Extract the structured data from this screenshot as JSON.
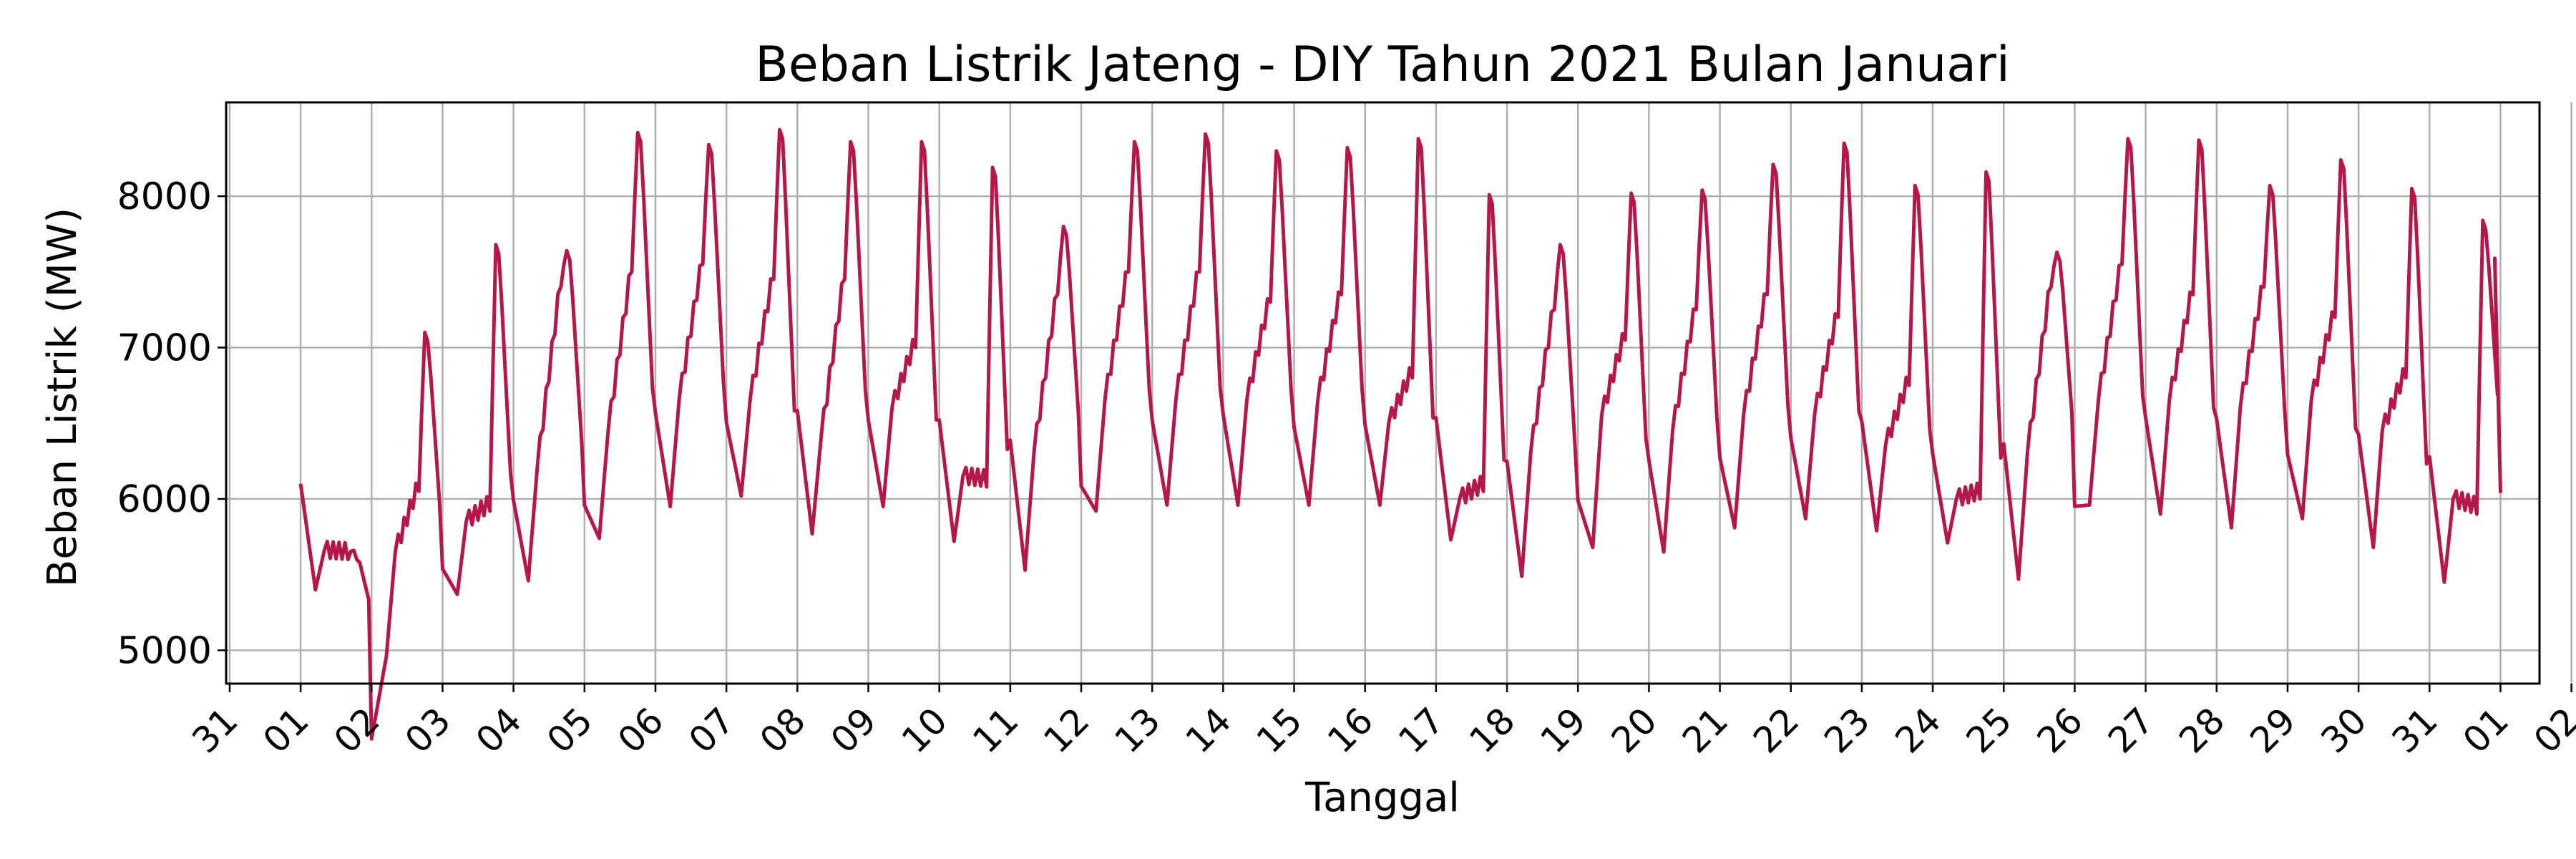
{
  "chart_data": {
    "type": "line",
    "title": "Beban Listrik Jateng - DIY Tahun 2021 Bulan Januari",
    "xlabel": "Tanggal",
    "ylabel": "Beban Listrik (MW)",
    "x_tick_labels": [
      "31",
      "01",
      "02",
      "03",
      "04",
      "05",
      "06",
      "07",
      "08",
      "09",
      "10",
      "11",
      "12",
      "13",
      "14",
      "15",
      "16",
      "17",
      "18",
      "19",
      "20",
      "21",
      "22",
      "23",
      "24",
      "25",
      "26",
      "27",
      "28",
      "29",
      "30",
      "31",
      "01",
      "02"
    ],
    "y_ticks": [
      5000,
      6000,
      7000,
      8000
    ],
    "xlim_days": [
      -1.05,
      31.55
    ],
    "ylim": [
      4780,
      8620
    ],
    "grid": true,
    "line_color": "#b5174a",
    "daily_profile": [
      {
        "day": "2021-01-01",
        "min": 5400,
        "morning": 5660,
        "day_level": 5650,
        "peak": 5660
      },
      {
        "day": "2021-01-02",
        "min": 4960,
        "morning": 5650,
        "day_level": 6100,
        "peak": 7100
      },
      {
        "day": "2021-01-03",
        "min": 5370,
        "morning": 5850,
        "day_level": 5970,
        "peak": 7680
      },
      {
        "day": "2021-01-04",
        "min": 5460,
        "morning": 6200,
        "day_level": 7450,
        "peak": 7640
      },
      {
        "day": "2021-01-05",
        "min": 5740,
        "morning": 6450,
        "day_level": 7550,
        "peak": 8420
      },
      {
        "day": "2021-01-06",
        "min": 5950,
        "morning": 6650,
        "day_level": 7600,
        "peak": 8340
      },
      {
        "day": "2021-01-07",
        "min": 6020,
        "morning": 6650,
        "day_level": 7500,
        "peak": 8440
      },
      {
        "day": "2021-01-08",
        "min": 5770,
        "morning": 6400,
        "day_level": 7500,
        "peak": 8360
      },
      {
        "day": "2021-01-09",
        "min": 5950,
        "morning": 6600,
        "day_level": 7050,
        "peak": 8360
      },
      {
        "day": "2021-01-10",
        "min": 5720,
        "morning": 6150,
        "day_level": 6130,
        "peak": 8190
      },
      {
        "day": "2021-01-11",
        "min": 5530,
        "morning": 6300,
        "day_level": 7400,
        "peak": 7800
      },
      {
        "day": "2021-01-12",
        "min": 5920,
        "morning": 6650,
        "day_level": 7550,
        "peak": 8360
      },
      {
        "day": "2021-01-13",
        "min": 5960,
        "morning": 6650,
        "day_level": 7550,
        "peak": 8410
      },
      {
        "day": "2021-01-14",
        "min": 5960,
        "morning": 6650,
        "day_level": 7350,
        "peak": 8300
      },
      {
        "day": "2021-01-15",
        "min": 5960,
        "morning": 6650,
        "day_level": 7400,
        "peak": 8320
      },
      {
        "day": "2021-01-16",
        "min": 5960,
        "morning": 6500,
        "day_level": 6850,
        "peak": 8380
      },
      {
        "day": "2021-01-17",
        "min": 5730,
        "morning": 6000,
        "day_level": 6100,
        "peak": 8010
      },
      {
        "day": "2021-01-18",
        "min": 5490,
        "morning": 6300,
        "day_level": 7300,
        "peak": 7680
      },
      {
        "day": "2021-01-19",
        "min": 5680,
        "morning": 6550,
        "day_level": 7100,
        "peak": 8020
      },
      {
        "day": "2021-01-20",
        "min": 5650,
        "morning": 6450,
        "day_level": 7300,
        "peak": 8040
      },
      {
        "day": "2021-01-21",
        "min": 5810,
        "morning": 6550,
        "day_level": 7400,
        "peak": 8210
      },
      {
        "day": "2021-01-22",
        "min": 5870,
        "morning": 6550,
        "day_level": 7250,
        "peak": 8350
      },
      {
        "day": "2021-01-23",
        "min": 5790,
        "morning": 6350,
        "day_level": 6800,
        "peak": 8070
      },
      {
        "day": "2021-01-24",
        "min": 5710,
        "morning": 6000,
        "day_level": 6050,
        "peak": 8160
      },
      {
        "day": "2021-01-25",
        "min": 5470,
        "morning": 6300,
        "day_level": 7450,
        "peak": 7630
      },
      {
        "day": "2021-01-26",
        "min": 5960,
        "morning": 6650,
        "day_level": 7600,
        "peak": 8380
      },
      {
        "day": "2021-01-27",
        "min": 5900,
        "morning": 6650,
        "day_level": 7400,
        "peak": 8370
      },
      {
        "day": "2021-01-28",
        "min": 5810,
        "morning": 6600,
        "day_level": 7450,
        "peak": 8070
      },
      {
        "day": "2021-01-29",
        "min": 5870,
        "morning": 6650,
        "day_level": 7250,
        "peak": 8240
      },
      {
        "day": "2021-01-30",
        "min": 5680,
        "morning": 6450,
        "day_level": 6850,
        "peak": 8050
      },
      {
        "day": "2021-01-31",
        "min": 5450,
        "morning": 6000,
        "day_level": 5950,
        "peak": 7840
      },
      {
        "day": "2021-02-01",
        "min": 6040,
        "morning": 6040,
        "day_level": 6040,
        "peak": 7590
      }
    ]
  }
}
